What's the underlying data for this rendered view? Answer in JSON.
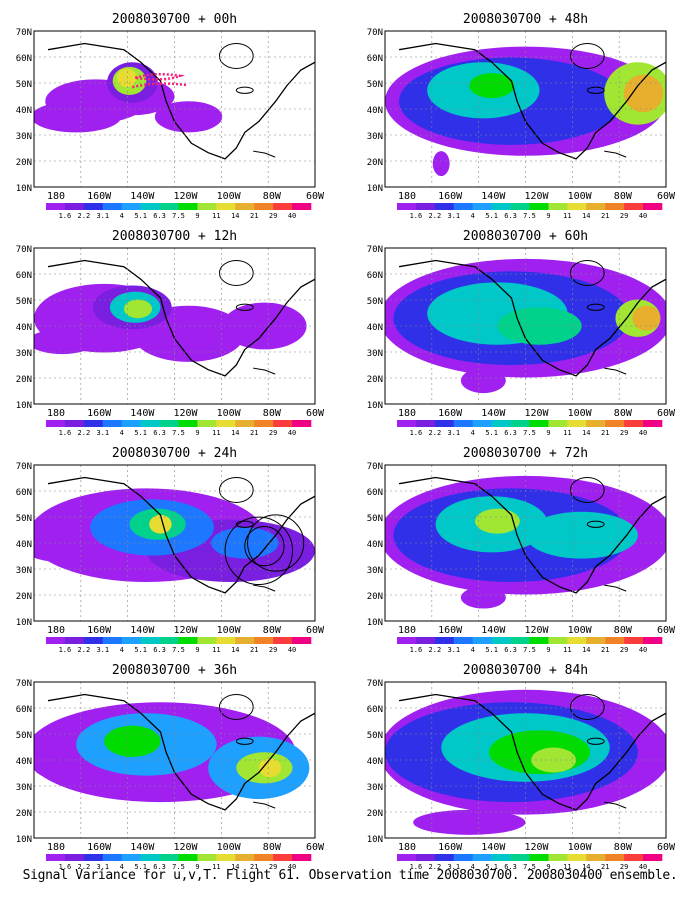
{
  "caption": "Signal Variance for u,v,T. Flight 61. Observation time 2008030700. 2008030400 ensemble.",
  "y_ticks": [
    "70N",
    "60N",
    "50N",
    "40N",
    "30N",
    "20N",
    "10N"
  ],
  "x_ticks": [
    "180",
    "160W",
    "140W",
    "120W",
    "100W",
    "80W",
    "60W"
  ],
  "colorbar": {
    "labels": [
      "1.6",
      "2.2",
      "3.1",
      "4",
      "5.1",
      "6.3",
      "7.5",
      "9",
      "11",
      "14",
      "21",
      "29",
      "40"
    ],
    "colors": [
      "#a020f0",
      "#7a1fe0",
      "#3030e8",
      "#1e78ff",
      "#1ea0ff",
      "#00c8c8",
      "#00d28c",
      "#00dc00",
      "#a0e632",
      "#e6dc32",
      "#e6af2d",
      "#f08228",
      "#fa3c3c",
      "#f00082"
    ]
  },
  "panels": [
    {
      "title": "2008030700 + 00h",
      "lead": "00h"
    },
    {
      "title": "2008030700 + 48h",
      "lead": "48h"
    },
    {
      "title": "2008030700 + 12h",
      "lead": "12h"
    },
    {
      "title": "2008030700 + 60h",
      "lead": "60h"
    },
    {
      "title": "2008030700 + 24h",
      "lead": "24h"
    },
    {
      "title": "2008030700 + 72h",
      "lead": "72h"
    },
    {
      "title": "2008030700 + 36h",
      "lead": "36h"
    },
    {
      "title": "2008030700 + 84h",
      "lead": "84h"
    }
  ]
}
